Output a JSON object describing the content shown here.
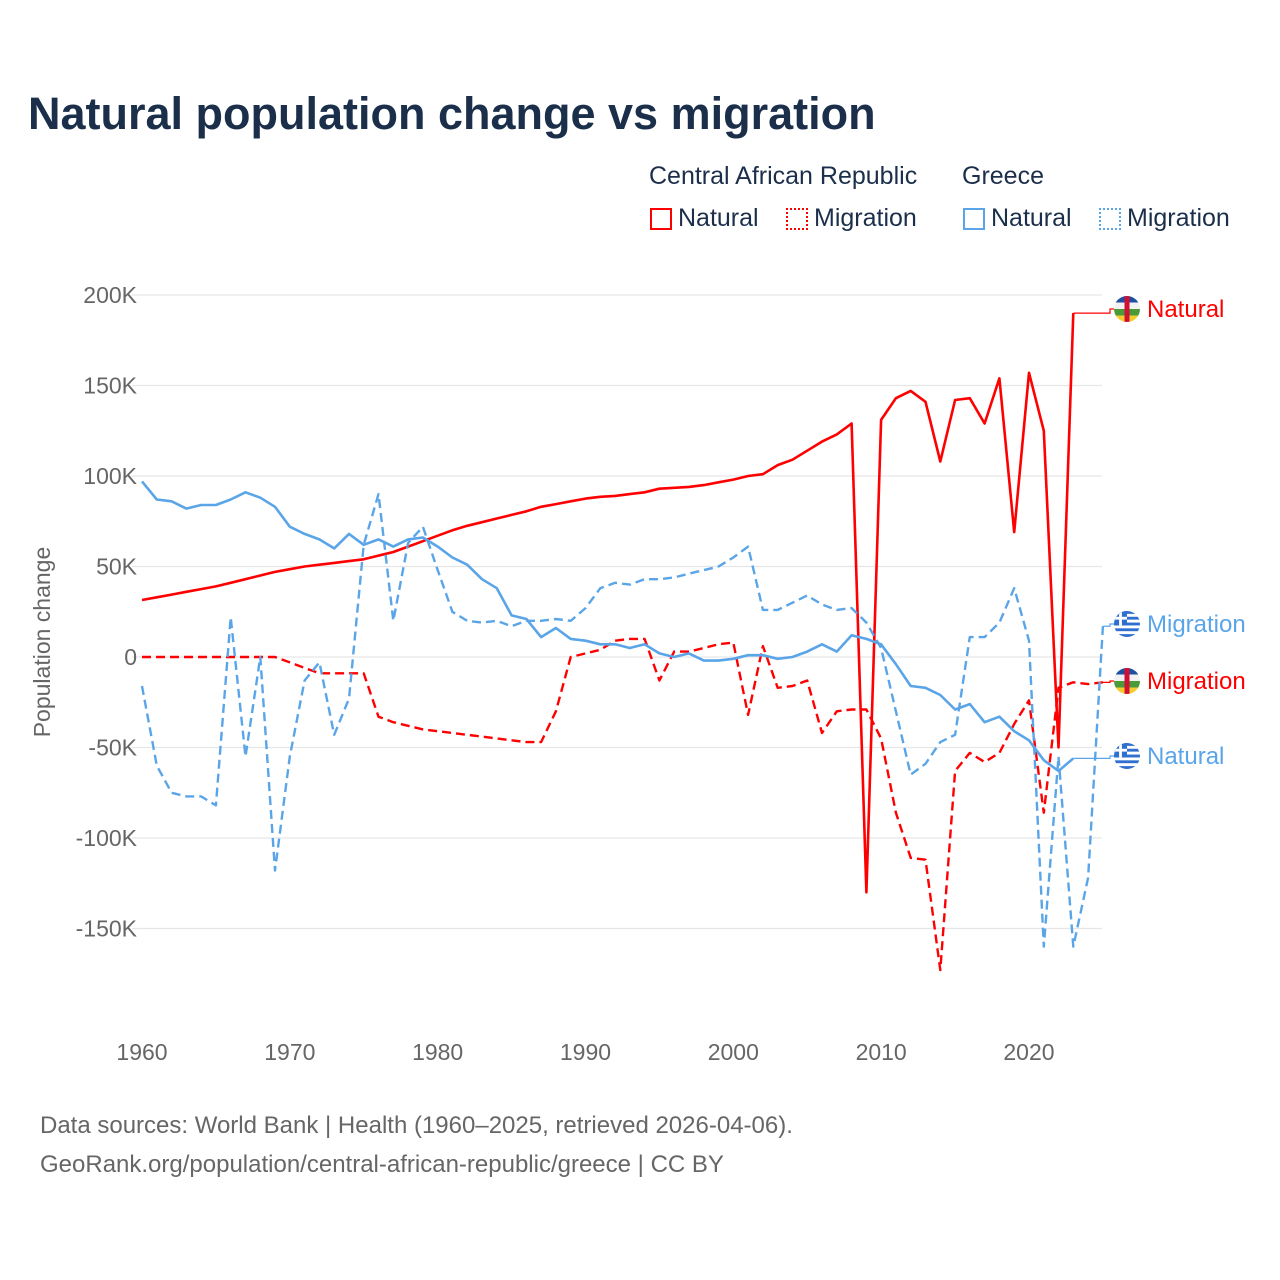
{
  "title": "Natural population change vs migration",
  "legend": {
    "groups": [
      {
        "name": "Central African Republic",
        "items": [
          "Natural",
          "Migration"
        ],
        "color": "#ff0000"
      },
      {
        "name": "Greece",
        "items": [
          "Natural",
          "Migration"
        ],
        "color": "#5aa5e8"
      }
    ]
  },
  "footer": {
    "line1": "Data sources: World Bank | Health (1960–2025, retrieved 2026-04-06).",
    "line2": "GeoRank.org/population/central-african-republic/greece | CC BY"
  },
  "chart_data": {
    "type": "line",
    "title": "Natural population change vs migration",
    "xlabel": "",
    "ylabel": "Population change",
    "xlim": [
      1960,
      2025
    ],
    "ylim": [
      -180000,
      200000
    ],
    "xticks": [
      1960,
      1970,
      1980,
      1990,
      2000,
      2010,
      2020
    ],
    "xtick_labels": [
      "1960",
      "1970",
      "1980",
      "1990",
      "2000",
      "2010",
      "2020"
    ],
    "yticks": [
      200000,
      150000,
      100000,
      50000,
      0,
      -50000,
      -100000,
      -150000
    ],
    "ytick_labels": [
      "200K",
      "150K",
      "100K",
      "50K",
      "0",
      "-50K",
      "-100K",
      "-150K"
    ],
    "grid": true,
    "series": [
      {
        "name": "Central African Republic Natural",
        "label": "Natural",
        "country": "Central African Republic",
        "color": "#ff0000",
        "dash": false,
        "start": 1960,
        "values": [
          31500,
          33000,
          34500,
          36000,
          37500,
          39000,
          41000,
          43000,
          45000,
          47000,
          48500,
          50000,
          51000,
          52000,
          53000,
          54000,
          56000,
          58000,
          61000,
          64000,
          67000,
          70000,
          72500,
          74500,
          76500,
          78500,
          80500,
          83000,
          84500,
          86000,
          87500,
          88500,
          89000,
          90000,
          91000,
          93000,
          93500,
          94000,
          95000,
          96500,
          98000,
          100000,
          101000,
          106000,
          109000,
          114000,
          119000,
          123000,
          129000,
          -130000,
          131000,
          143000,
          147000,
          141000,
          108000,
          142000,
          143000,
          129000,
          154000,
          69000,
          157000,
          125000,
          -50000,
          190000
        ]
      },
      {
        "name": "Central African Republic Migration",
        "label": "Migration",
        "country": "Central African Republic",
        "color": "#ff0000",
        "dash": true,
        "start": 1960,
        "values": [
          0,
          0,
          0,
          0,
          0,
          0,
          0,
          0,
          0,
          0,
          -3000,
          -6000,
          -9000,
          -9000,
          -9000,
          -9000,
          -33000,
          -36000,
          -38000,
          -40000,
          -41000,
          -42000,
          -43000,
          -44000,
          -45000,
          -46000,
          -47000,
          -47000,
          -30000,
          0,
          2000,
          4000,
          9000,
          10000,
          10000,
          -13000,
          3000,
          3000,
          5000,
          7000,
          8000,
          -32000,
          6000,
          -17000,
          -16000,
          -13000,
          -42000,
          -30000,
          -29000,
          -29000,
          -45000,
          -86000,
          -111000,
          -112000,
          -173000,
          -63000,
          -53000,
          -58000,
          -53000,
          -37000,
          -24000,
          -86000,
          -17000,
          -14000,
          -15000,
          -14000
        ]
      },
      {
        "name": "Greece Natural",
        "label": "Natural",
        "country": "Greece",
        "color": "#5aa5e8",
        "dash": false,
        "start": 1960,
        "values": [
          97000,
          87000,
          86000,
          82000,
          84000,
          84000,
          87000,
          91000,
          88000,
          83000,
          72000,
          68000,
          65000,
          60000,
          68000,
          62000,
          65000,
          61000,
          65000,
          66000,
          61000,
          55000,
          51000,
          43000,
          38000,
          23000,
          21000,
          11000,
          16000,
          10000,
          9000,
          7000,
          7000,
          5000,
          7000,
          2000,
          0,
          2000,
          -2000,
          -2000,
          -1000,
          1000,
          1000,
          -1000,
          0,
          3000,
          7000,
          3000,
          12000,
          10000,
          7000,
          -4000,
          -16000,
          -17000,
          -21000,
          -29000,
          -26000,
          -36000,
          -33000,
          -41000,
          -46000,
          -57000,
          -63000,
          -56000
        ]
      },
      {
        "name": "Greece Migration",
        "label": "Migration",
        "country": "Greece",
        "color": "#5aa5e8",
        "dash": true,
        "start": 1960,
        "values": [
          -16000,
          -60000,
          -75000,
          -77000,
          -77000,
          -82000,
          22000,
          -55000,
          0,
          -118000,
          -55000,
          -13000,
          -3000,
          -43000,
          -23000,
          62000,
          90000,
          20000,
          63000,
          72000,
          48000,
          25000,
          20000,
          19000,
          20000,
          17000,
          20000,
          20000,
          21000,
          20000,
          27000,
          38000,
          41000,
          40000,
          43000,
          43000,
          44000,
          46000,
          48000,
          50000,
          55000,
          61000,
          26000,
          26000,
          30000,
          34000,
          29000,
          26000,
          27000,
          19000,
          5000,
          -30000,
          -65000,
          -59000,
          -47000,
          -43000,
          11000,
          11000,
          19000,
          38000,
          9000,
          -160000,
          -55000,
          -160000,
          -122000,
          17000
        ]
      }
    ],
    "end_labels": [
      {
        "series": 0,
        "text": "Natural"
      },
      {
        "series": 3,
        "text": "Migration"
      },
      {
        "series": 1,
        "text": "Migration"
      },
      {
        "series": 2,
        "text": "Natural"
      }
    ]
  }
}
